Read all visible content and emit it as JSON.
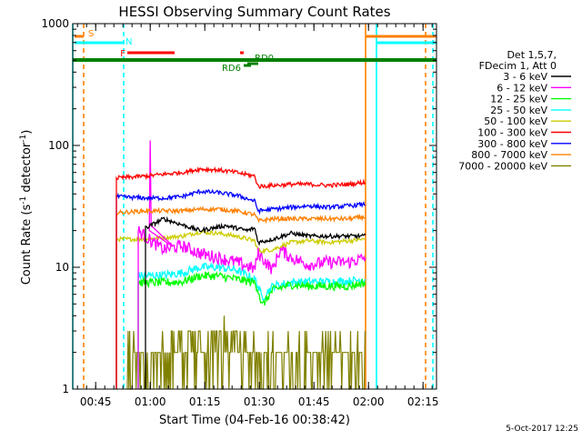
{
  "chart_data": {
    "type": "line",
    "title": "HESSI Observing Summary Count Rates",
    "xlabel": "Start Time (04-Feb-16 00:38:42)",
    "ylabel": "Count Rate (s",
    "ylabel_sup1": "-1",
    "ylabel_mid": " detector",
    "ylabel_sup2": "-1",
    "ylabel_end": ")",
    "x_unit": "minutes after 00:38:42 UT",
    "xlim": [
      0,
      100
    ],
    "ylim": [
      1,
      1000
    ],
    "yscale": "log",
    "x_ticks": [
      {
        "label": "00:45",
        "x": 6.3
      },
      {
        "label": "01:00",
        "x": 21.3
      },
      {
        "label": "01:15",
        "x": 36.3
      },
      {
        "label": "01:30",
        "x": 51.3
      },
      {
        "label": "01:45",
        "x": 66.3
      },
      {
        "label": "02:00",
        "x": 81.3
      },
      {
        "label": "02:15",
        "x": 96.3
      }
    ],
    "y_ticks": [
      {
        "label": "1",
        "y": 1
      },
      {
        "label": "10",
        "y": 10
      },
      {
        "label": "100",
        "y": 100
      },
      {
        "label": "1000",
        "y": 1000
      }
    ],
    "legend_header": [
      "Det 1,5,7,",
      "FDecim 1, Att 0"
    ],
    "legend_position": "right",
    "series": [
      {
        "name": "3 - 6 keV",
        "color": "#000000",
        "x": [
          10,
          20,
          25,
          35,
          42,
          48,
          50,
          51,
          55,
          60,
          65,
          70,
          76,
          80.5
        ],
        "y": [
          0,
          21,
          25,
          20,
          22,
          20,
          21,
          16,
          17,
          19,
          18,
          18,
          18,
          18
        ]
      },
      {
        "name": "6 - 12 keV",
        "color": "#ff00ff",
        "x": [
          10,
          18,
          22,
          25,
          30,
          35,
          40,
          45,
          50,
          51,
          55,
          57,
          60,
          65,
          70,
          76,
          80.5
        ],
        "y": [
          0,
          20,
          16,
          14,
          15,
          13,
          12,
          11,
          9.7,
          13,
          9.5,
          14,
          12,
          10.5,
          11,
          11,
          12
        ]
      },
      {
        "name": "12 - 25 keV",
        "color": "#00ff00",
        "x": [
          10,
          18,
          25,
          30,
          35,
          40,
          45,
          50,
          51,
          52,
          55,
          60,
          65,
          70,
          76,
          80.5
        ],
        "y": [
          0,
          7.5,
          7.5,
          7.6,
          8.5,
          8.5,
          8,
          7.5,
          6.5,
          4.8,
          6.5,
          7.2,
          7,
          7,
          7,
          7.5
        ]
      },
      {
        "name": "25 - 50 keV",
        "color": "#00ffff",
        "x": [
          10,
          18,
          25,
          30,
          35,
          40,
          45,
          50,
          51,
          52,
          55,
          60,
          65,
          70,
          76,
          80.5
        ],
        "y": [
          0,
          8.5,
          8.6,
          9,
          10,
          10,
          9.5,
          8,
          7,
          5.6,
          7,
          7.5,
          7.6,
          7.6,
          7.7,
          8
        ]
      },
      {
        "name": "50 - 100 keV",
        "color": "#cccc00",
        "x": [
          10,
          12,
          20,
          25,
          30,
          35,
          40,
          45,
          50,
          51,
          55,
          60,
          65,
          70,
          76,
          80.5
        ],
        "y": [
          0,
          17,
          17,
          17.5,
          18,
          19.5,
          19,
          18,
          16.5,
          13.5,
          14,
          16,
          16.5,
          16,
          16.5,
          17
        ]
      },
      {
        "name": "100 - 300 keV",
        "color": "#ff0000",
        "x": [
          10,
          12,
          20,
          25,
          30,
          35,
          40,
          45,
          50,
          51,
          55,
          60,
          65,
          70,
          76,
          80.5
        ],
        "y": [
          0,
          54,
          56,
          58,
          60,
          64,
          63,
          60,
          56,
          46,
          47,
          48,
          48,
          47,
          48,
          50
        ]
      },
      {
        "name": "300 - 800 keV",
        "color": "#0000ff",
        "x": [
          10,
          12,
          20,
          25,
          30,
          35,
          40,
          45,
          50,
          51,
          55,
          60,
          65,
          70,
          76,
          80.5
        ],
        "y": [
          0,
          38,
          37,
          37,
          38,
          42,
          41,
          39,
          35,
          29,
          30,
          31,
          32,
          31,
          32,
          33
        ]
      },
      {
        "name": "800 - 7000 keV",
        "color": "#ff8000",
        "x": [
          10,
          12,
          20,
          25,
          30,
          35,
          40,
          45,
          50,
          51,
          55,
          60,
          65,
          70,
          76,
          80.5
        ],
        "y": [
          0,
          28,
          29,
          29,
          29,
          30,
          30,
          29,
          27,
          24,
          25,
          25,
          25,
          25,
          25,
          26
        ]
      },
      {
        "name": "7000 - 20000 keV",
        "color": "#808000",
        "x": [
          10,
          15,
          20,
          25,
          28,
          32,
          36,
          40,
          44,
          48,
          50,
          55,
          60,
          65,
          70,
          75,
          80.5
        ],
        "y": [
          0,
          2,
          2,
          2.5,
          2.6,
          3,
          3.2,
          3,
          3.4,
          2.8,
          3,
          2.6,
          2.8,
          2.4,
          2.6,
          2.4,
          2
        ]
      }
    ],
    "annotations": [
      {
        "label": "S",
        "color": "#ff8000",
        "kind": "SAA",
        "x": [
          0.5,
          3
        ]
      },
      {
        "label": "N",
        "color": "#00ffff",
        "kind": "Night",
        "x": [
          0.5,
          14
        ]
      },
      {
        "label": "F",
        "color": "#ff0000",
        "kind": "Flare",
        "x": [
          15,
          28
        ]
      },
      {
        "label": "",
        "color": "#ff0000",
        "kind": "Flare",
        "x": [
          46,
          47
        ]
      },
      {
        "label": "RD6",
        "color": "#008000",
        "kind": "Data",
        "x": [
          47,
          49
        ]
      },
      {
        "label": "RD0",
        "color": "#008000",
        "kind": "Data",
        "x": [
          48,
          51
        ]
      },
      {
        "label": "",
        "color": "#008000",
        "kind": "Data",
        "x": [
          0,
          100
        ]
      },
      {
        "label": "",
        "color": "#ff8000",
        "kind": "SAA",
        "x": [
          80.5,
          100
        ]
      },
      {
        "label": "",
        "color": "#00ffff",
        "kind": "Night",
        "x": [
          83.5,
          100
        ]
      }
    ],
    "vertical_markers": [
      {
        "x": 0,
        "color": "#00ffff",
        "style": "solid"
      },
      {
        "x": 3,
        "color": "#ff8000",
        "style": "dashed"
      },
      {
        "x": 14,
        "color": "#00ffff",
        "style": "dashed"
      },
      {
        "x": 80.5,
        "color": "#ff8000",
        "style": "solid"
      },
      {
        "x": 83.5,
        "color": "#00ffff",
        "style": "solid"
      },
      {
        "x": 97,
        "color": "#ff8000",
        "style": "dashed"
      },
      {
        "x": 99,
        "color": "#00ffff",
        "style": "dashed"
      }
    ],
    "grid": false
  },
  "footer": {
    "timestamp": "5-Oct-2017 12:25"
  }
}
